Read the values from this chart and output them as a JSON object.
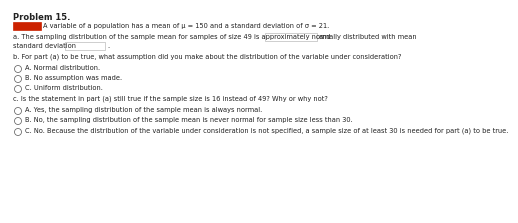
{
  "title": "Problem 15.",
  "highlight_color": "#cc2200",
  "background_color": "#ffffff",
  "text_color": "#222222",
  "font_size": 4.8,
  "title_font_size": 6.0,
  "intro_text": "A variable of a population has a mean of μ = 150 and a standard deviation of σ = 21.",
  "part_a_line1": "a. The sampling distribution of the sample mean for samples of size 49 is approximately normally distributed with mean",
  "part_a_box1_label": "and",
  "part_a_line2": "standard deviation",
  "part_b_intro": "b. For part (a) to be true, what assumption did you make about the distribution of the variable under consideration?",
  "choice_bA": "A. Normal distribution.",
  "choice_bB": "B. No assumption was made.",
  "choice_bC": "C. Uniform distribution.",
  "part_c_intro": "c. Is the statement in part (a) still true if the sample size is 16 instead of 49? Why or why not?",
  "choice_cA": "A. Yes, the sampling distribution of the sample mean is always normal.",
  "choice_cB": "B. No, the sampling distribution of the sample mean is never normal for sample size less than 30.",
  "choice_cC": "C. No. Because the distribution of the variable under consideration is not specified, a sample size of at least 30 is needed for part (a) to be true."
}
